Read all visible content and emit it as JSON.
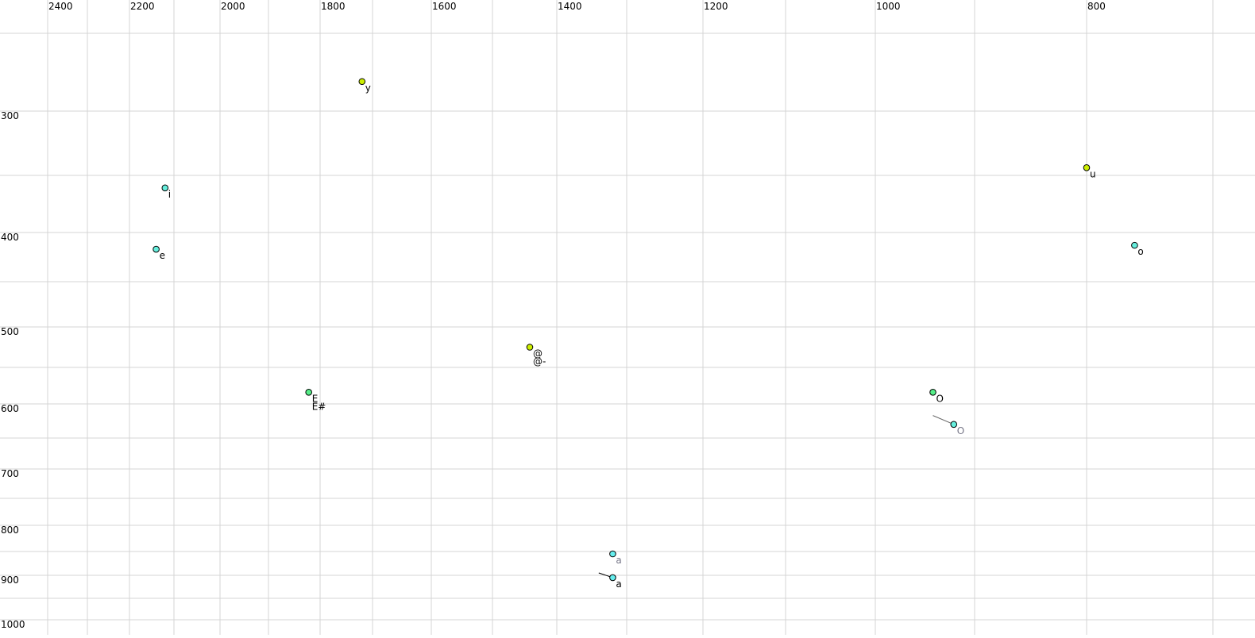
{
  "chart_data": {
    "type": "scatter",
    "title": "",
    "xlabel": "",
    "ylabel": "",
    "x_axis": {
      "reversed": true,
      "position": "top",
      "scale": "nonlinear (auditory)",
      "range": [
        2450,
        680
      ],
      "tick_labels": [
        2400,
        2200,
        2000,
        1800,
        1600,
        1400,
        1200,
        1000,
        800
      ],
      "grid": [
        2400,
        2300,
        2200,
        2100,
        2000,
        1900,
        1800,
        1700,
        1600,
        1500,
        1400,
        1300,
        1200,
        1100,
        1000,
        900,
        800,
        700
      ]
    },
    "y_axis": {
      "reversed": false,
      "position": "left",
      "scale": "nonlinear (auditory)",
      "range": [
        250,
        1010
      ],
      "tick_labels": [
        300,
        400,
        500,
        600,
        700,
        800,
        900,
        1000
      ],
      "grid": [
        250,
        300,
        350,
        400,
        450,
        500,
        550,
        600,
        650,
        700,
        750,
        800,
        850,
        900,
        950,
        1000
      ]
    },
    "grid": true,
    "colors": {
      "yellow": "#ccee00",
      "cyan": "#66eedd",
      "green": "#55ee88",
      "aqua": "#66eeee",
      "grid": "#d4d4d4"
    },
    "points": [
      {
        "label": "y",
        "f2": 1720,
        "f1": 281,
        "color": "yellow",
        "label_color": "#000000"
      },
      {
        "label": "i",
        "f2": 2120,
        "f1": 361,
        "color": "cyan",
        "label_color": "#000000"
      },
      {
        "label": "e",
        "f2": 2140,
        "f1": 417,
        "color": "cyan",
        "label_color": "#000000"
      },
      {
        "label": "E",
        "label2": "E#",
        "f2": 1822,
        "f1": 584,
        "color": "green",
        "label_color": "#000000"
      },
      {
        "label": "@",
        "label2": "@-",
        "f2": 1442,
        "f1": 525,
        "color": "yellow",
        "label_color": "#000000"
      },
      {
        "label": "u",
        "f2": 800,
        "f1": 344,
        "color": "yellow",
        "label_color": "#000000"
      },
      {
        "label": "o",
        "f2": 762,
        "f1": 413,
        "color": "cyan",
        "label_color": "#000000"
      },
      {
        "label": "O",
        "f2": 942,
        "f1": 584,
        "color": "green",
        "label_color": "#000000"
      },
      {
        "label": "O",
        "f2": 921,
        "f1": 630,
        "color": "cyan",
        "label_color": "#777788",
        "trail_from": {
          "f2": 942,
          "f1": 617
        }
      },
      {
        "label": "a",
        "f2": 1320,
        "f1": 855,
        "color": "aqua",
        "label_color": "#777788"
      },
      {
        "label": "a",
        "f2": 1320,
        "f1": 905,
        "color": "aqua",
        "label_color": "#000000",
        "trail_from": {
          "f2": 1340,
          "f1": 895
        }
      }
    ]
  }
}
